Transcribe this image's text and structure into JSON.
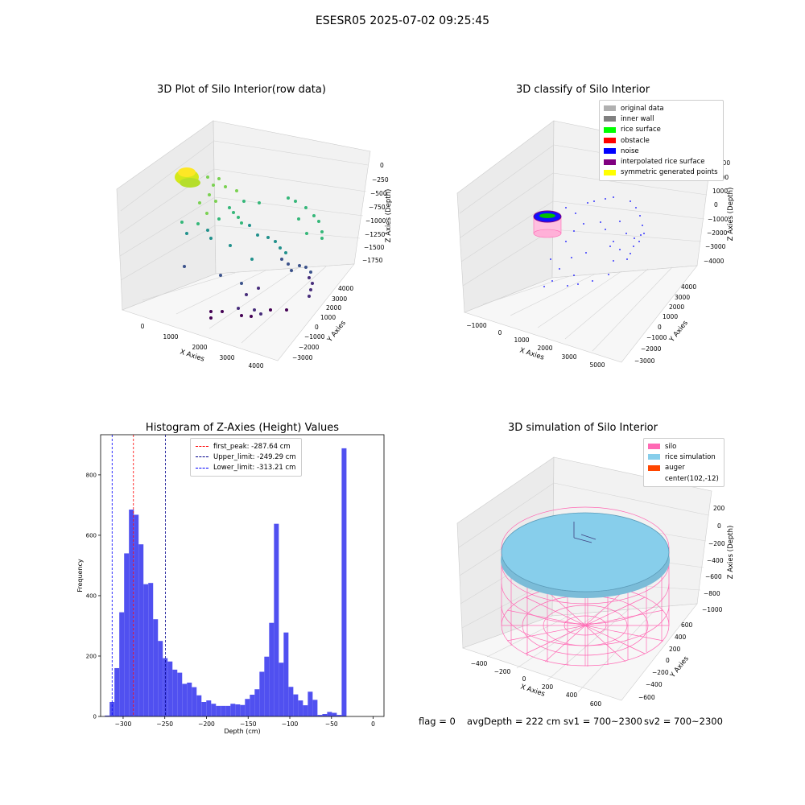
{
  "suptitle": "ESESR05 2025-07-02 09:25:45",
  "colors": {
    "hist_bar": "#5050f0",
    "peak": "#ff0000",
    "upper": "#00008b",
    "lower": "#0000ff",
    "silo": "#ff69b4",
    "rice": "#87ceeb",
    "auger": "#ff4500"
  },
  "plot1": {
    "title": "3D Plot of Silo Interior(row data)",
    "xlabel": "X Axies",
    "ylabel": "Y Axies",
    "zlabel": "Z Axies (Depth)",
    "xticks": [
      "0",
      "1000",
      "2000",
      "3000",
      "4000"
    ],
    "yticks": [
      "4000",
      "3000",
      "2000",
      "1000",
      "0",
      "−1000",
      "−2000",
      "−3000"
    ],
    "zticks": [
      "0",
      "−250",
      "−500",
      "−750",
      "−1000",
      "−1250",
      "−1500",
      "−1750"
    ]
  },
  "plot2": {
    "title": "3D classify of Silo Interior",
    "xlabel": "X Axies",
    "ylabel": "Y Axies",
    "zlabel": "Z Axies (Depth)",
    "xticks": [
      "−1000",
      "0",
      "1000",
      "2000",
      "3000",
      "4000",
      "5000"
    ],
    "yticks": [
      "4000",
      "3000",
      "2000",
      "1000",
      "0",
      "−1000",
      "−2000",
      "−3000"
    ],
    "zticks": [
      "3000",
      "2000",
      "1000",
      "0",
      "−1000",
      "−2000",
      "−3000",
      "−4000"
    ],
    "legend": [
      {
        "label": "original data",
        "color": "#b0b0b0"
      },
      {
        "label": "inner wall",
        "color": "#808080"
      },
      {
        "label": "rice surface",
        "color": "#00ff00"
      },
      {
        "label": "obstacle",
        "color": "#ff0000"
      },
      {
        "label": "noise",
        "color": "#0000ff"
      },
      {
        "label": "interpolated rice surface",
        "color": "#800080"
      },
      {
        "label": "symmetric generated points",
        "color": "#ffff00"
      }
    ]
  },
  "chart_data": [
    {
      "type": "bar",
      "title": "Histogram of Z-Axies (Height) Values",
      "xlabel": "Depth (cm)",
      "ylabel": "Frequency",
      "xlim": [
        -327,
        13
      ],
      "ylim": [
        0,
        933
      ],
      "xticks": [
        -300,
        -250,
        -200,
        -150,
        -100,
        -50,
        0
      ],
      "yticks": [
        0,
        200,
        400,
        600,
        800
      ],
      "bin_width": 5.8,
      "bin_start": -322,
      "values": [
        3,
        48,
        160,
        345,
        540,
        685,
        668,
        570,
        438,
        442,
        322,
        250,
        193,
        182,
        155,
        145,
        108,
        112,
        97,
        70,
        48,
        53,
        42,
        35,
        35,
        35,
        42,
        40,
        38,
        58,
        72,
        90,
        148,
        198,
        310,
        638,
        178,
        278,
        98,
        73,
        53,
        37,
        82,
        55,
        5,
        8,
        15,
        12,
        5,
        888
      ],
      "lines": [
        {
          "name": "first_peak: -287.64 cm",
          "x": -287.64
        },
        {
          "name": "Upper_limit: -249.29 cm",
          "x": -249.29
        },
        {
          "name": "Lower_limit: -313.21 cm",
          "x": -313.21
        }
      ]
    }
  ],
  "plot4": {
    "title": "3D simulation of Silo Interior",
    "xlabel": "X Axies",
    "ylabel": "Y Axies",
    "zlabel": "Z Axies (Depth)",
    "xticks": [
      "−400",
      "−200",
      "0",
      "200",
      "400",
      "600"
    ],
    "yticks": [
      "600",
      "400",
      "200",
      "0",
      "−200",
      "−400",
      "−600"
    ],
    "zticks": [
      "200",
      "0",
      "−200",
      "−400",
      "−600",
      "−800",
      "−1000"
    ],
    "legend": [
      {
        "label": "silo",
        "color": "#ff69b4"
      },
      {
        "label": "rice simulation",
        "color": "#87ceeb"
      },
      {
        "label": "auger",
        "color": "#ff4500"
      },
      {
        "label": "center(102,-12)",
        "color": ""
      }
    ]
  },
  "footer": {
    "flag": "flag = 0",
    "avg": "avgDepth = 222 cm",
    "sv1": "sv1 = 700~2300",
    "sv2": "sv2 = 700~2300"
  }
}
